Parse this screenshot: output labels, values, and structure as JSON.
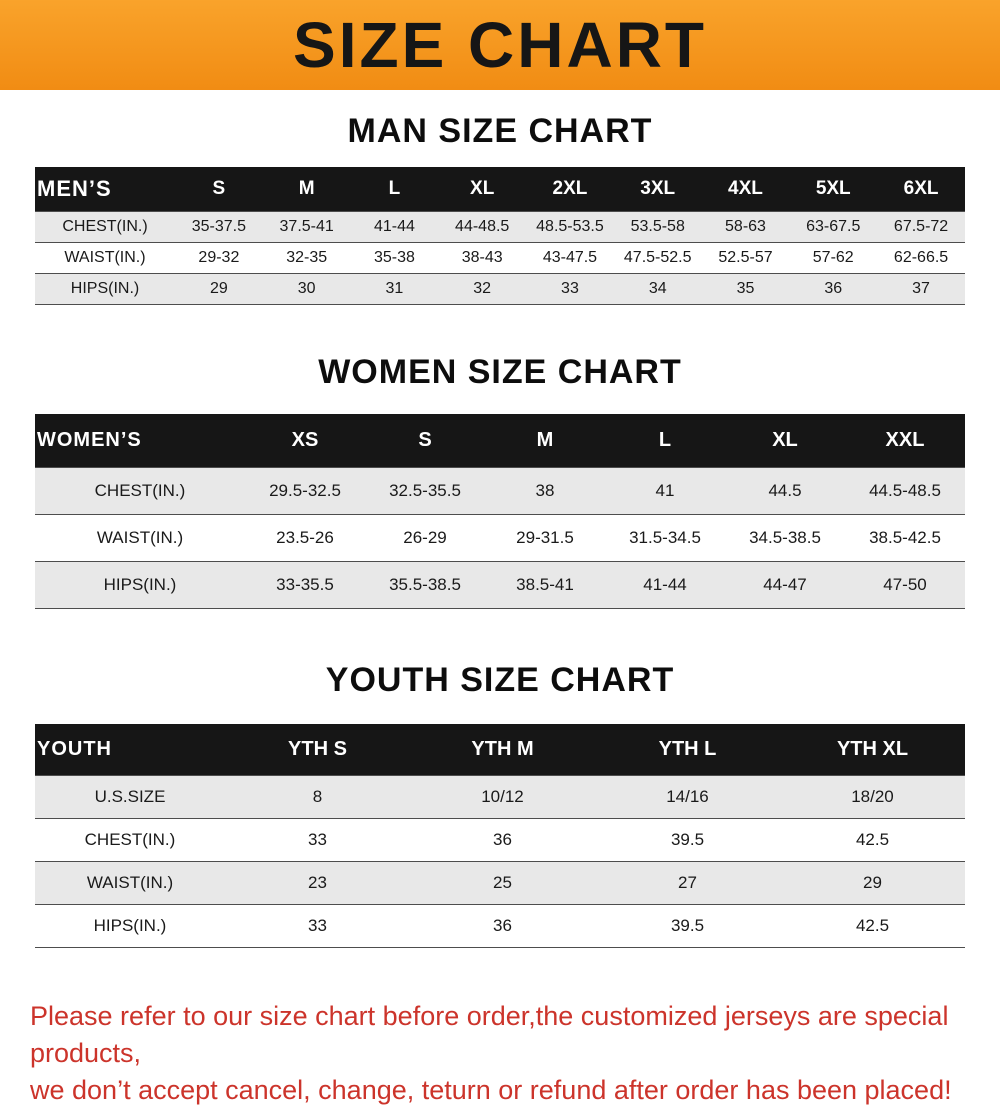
{
  "banner": {
    "title": "SIZE CHART"
  },
  "colors": {
    "banner_orange": "#f7941e",
    "table_header_black": "#161616",
    "row_stripe_gray": "#e8e8e8",
    "disclaimer_red": "#cc342b"
  },
  "disclaimer": {
    "line1": "Please refer to our size chart before order,the customized jerseys are special products,",
    "line2": "we don’t accept cancel, change, teturn or refund after order has been placed!"
  },
  "chart_data": [
    {
      "type": "table",
      "title": "MAN SIZE CHART",
      "header": [
        "MEN’S",
        "S",
        "M",
        "L",
        "XL",
        "2XL",
        "3XL",
        "4XL",
        "5XL",
        "6XL"
      ],
      "rows": [
        [
          "CHEST(IN.)",
          "35-37.5",
          "37.5-41",
          "41-44",
          "44-48.5",
          "48.5-53.5",
          "53.5-58",
          "58-63",
          "63-67.5",
          "67.5-72"
        ],
        [
          "WAIST(IN.)",
          "29-32",
          "32-35",
          "35-38",
          "38-43",
          "43-47.5",
          "47.5-52.5",
          "52.5-57",
          "57-62",
          "62-66.5"
        ],
        [
          "HIPS(IN.)",
          "29",
          "30",
          "31",
          "32",
          "33",
          "34",
          "35",
          "36",
          "37"
        ]
      ]
    },
    {
      "type": "table",
      "title": "WOMEN SIZE CHART",
      "header": [
        "WOMEN’S",
        "XS",
        "S",
        "M",
        "L",
        "XL",
        "XXL"
      ],
      "rows": [
        [
          "CHEST(IN.)",
          "29.5-32.5",
          "32.5-35.5",
          "38",
          "41",
          "44.5",
          "44.5-48.5"
        ],
        [
          "WAIST(IN.)",
          "23.5-26",
          "26-29",
          "29-31.5",
          "31.5-34.5",
          "34.5-38.5",
          "38.5-42.5"
        ],
        [
          "HIPS(IN.)",
          "33-35.5",
          "35.5-38.5",
          "38.5-41",
          "41-44",
          "44-47",
          "47-50"
        ]
      ]
    },
    {
      "type": "table",
      "title": "YOUTH SIZE CHART",
      "header": [
        "YOUTH",
        "YTH S",
        "YTH M",
        "YTH L",
        "YTH XL"
      ],
      "rows": [
        [
          "U.S.SIZE",
          "8",
          "10/12",
          "14/16",
          "18/20"
        ],
        [
          "CHEST(IN.)",
          "33",
          "36",
          "39.5",
          "42.5"
        ],
        [
          "WAIST(IN.)",
          "23",
          "25",
          "27",
          "29"
        ],
        [
          "HIPS(IN.)",
          "33",
          "36",
          "39.5",
          "42.5"
        ]
      ]
    }
  ]
}
